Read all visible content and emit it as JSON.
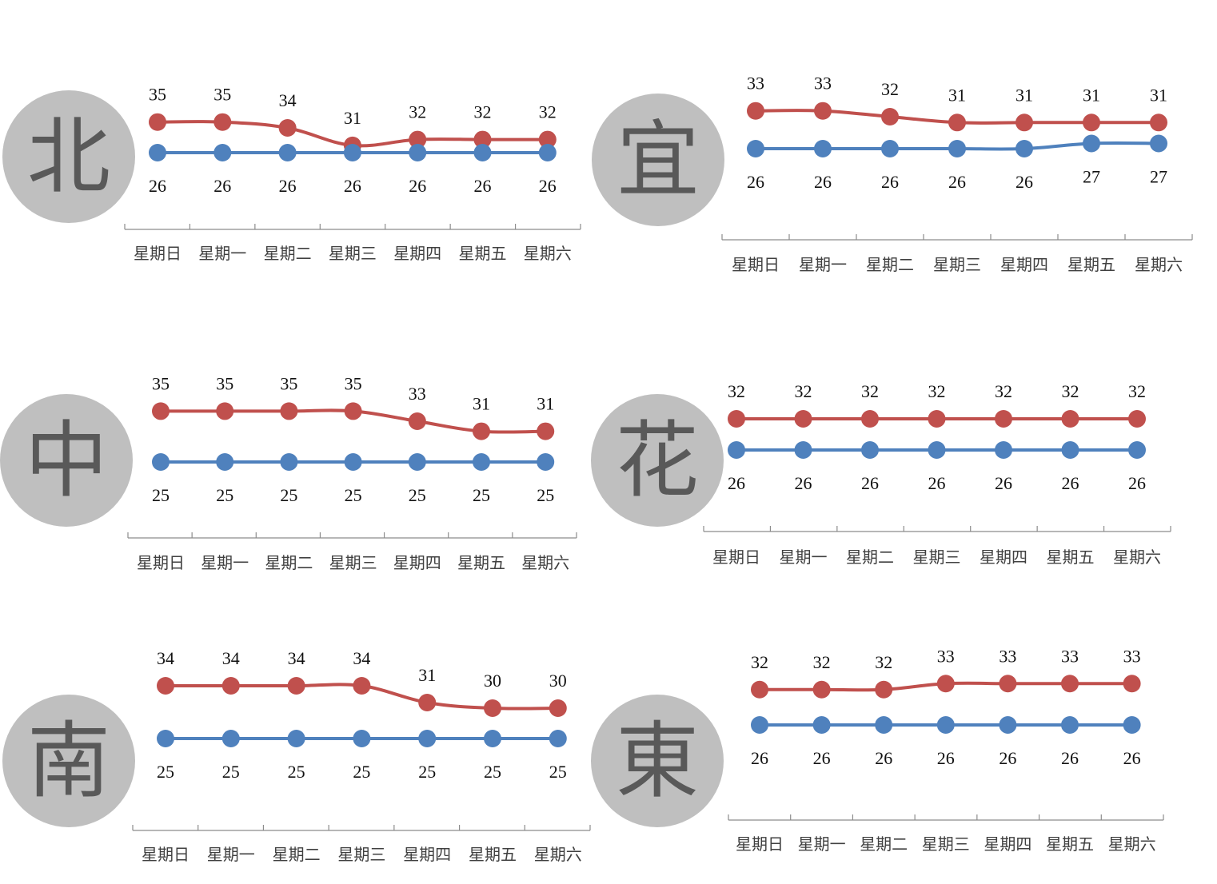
{
  "colors": {
    "high": "#c0504d",
    "low": "#4f81bd",
    "circle": "#bfbfbf",
    "axis": "#8c8c8c"
  },
  "chart_data": [
    {
      "type": "line",
      "region": "北",
      "categories": [
        "星期日",
        "星期一",
        "星期二",
        "星期三",
        "星期四",
        "星期五",
        "星期六"
      ],
      "series": [
        {
          "key": "high",
          "values": [
            35,
            35,
            34,
            31,
            32,
            32,
            32
          ]
        },
        {
          "key": "low",
          "values": [
            26,
            26,
            26,
            26,
            26,
            26,
            26
          ]
        }
      ]
    },
    {
      "type": "line",
      "region": "宜",
      "categories": [
        "星期日",
        "星期一",
        "星期二",
        "星期三",
        "星期四",
        "星期五",
        "星期六"
      ],
      "series": [
        {
          "key": "high",
          "values": [
            33,
            33,
            32,
            31,
            31,
            31,
            31
          ]
        },
        {
          "key": "low",
          "values": [
            26,
            26,
            26,
            26,
            26,
            27,
            27
          ]
        }
      ]
    },
    {
      "type": "line",
      "region": "中",
      "categories": [
        "星期日",
        "星期一",
        "星期二",
        "星期三",
        "星期四",
        "星期五",
        "星期六"
      ],
      "series": [
        {
          "key": "high",
          "values": [
            35,
            35,
            35,
            35,
            33,
            31,
            31
          ]
        },
        {
          "key": "low",
          "values": [
            25,
            25,
            25,
            25,
            25,
            25,
            25
          ]
        }
      ]
    },
    {
      "type": "line",
      "region": "花",
      "categories": [
        "星期日",
        "星期一",
        "星期二",
        "星期三",
        "星期四",
        "星期五",
        "星期六"
      ],
      "series": [
        {
          "key": "high",
          "values": [
            32,
            32,
            32,
            32,
            32,
            32,
            32
          ]
        },
        {
          "key": "low",
          "values": [
            26,
            26,
            26,
            26,
            26,
            26,
            26
          ]
        }
      ]
    },
    {
      "type": "line",
      "region": "南",
      "categories": [
        "星期日",
        "星期一",
        "星期二",
        "星期三",
        "星期四",
        "星期五",
        "星期六"
      ],
      "series": [
        {
          "key": "high",
          "values": [
            34,
            34,
            34,
            34,
            31,
            30,
            30
          ]
        },
        {
          "key": "low",
          "values": [
            25,
            25,
            25,
            25,
            25,
            25,
            25
          ]
        }
      ]
    },
    {
      "type": "line",
      "region": "東",
      "categories": [
        "星期日",
        "星期一",
        "星期二",
        "星期三",
        "星期四",
        "星期五",
        "星期六"
      ],
      "series": [
        {
          "key": "high",
          "values": [
            32,
            32,
            32,
            33,
            33,
            33,
            33
          ]
        },
        {
          "key": "low",
          "values": [
            26,
            26,
            26,
            26,
            26,
            26,
            26
          ]
        }
      ]
    }
  ]
}
